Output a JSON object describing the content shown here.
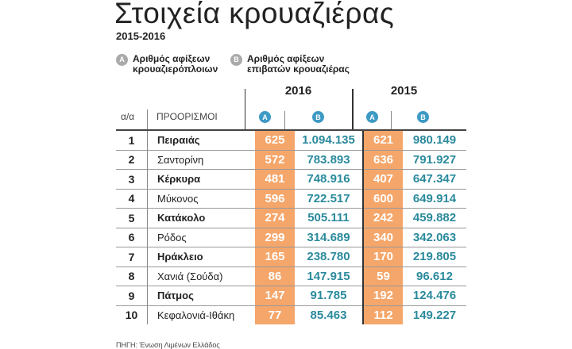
{
  "title": "Στοιχεία κρουαζιέρας",
  "subtitle": "2015-2016",
  "legend": [
    {
      "key": "A",
      "label1": "Αριθμός αφίξεων",
      "label2": "κρουαζιερόπλοιων"
    },
    {
      "key": "B",
      "label1": "Αριθμός αφίξεων",
      "label2": "επιβατών κρουαζιέρας"
    }
  ],
  "years": [
    "2016",
    "2015"
  ],
  "headers": {
    "index": "α/α",
    "destinations": "ΠΡΟΟΡΙΣΜΟΙ",
    "a": "A",
    "b": "B"
  },
  "rows": [
    {
      "n": "1",
      "name": "Πειραιάς",
      "a16": "625",
      "b16": "1.094.135",
      "a15": "621",
      "b15": "980.149"
    },
    {
      "n": "2",
      "name": "Σαντορίνη",
      "a16": "572",
      "b16": "783.893",
      "a15": "636",
      "b15": "791.927"
    },
    {
      "n": "3",
      "name": "Κέρκυρα",
      "a16": "481",
      "b16": "748.916",
      "a15": "407",
      "b15": "647.347"
    },
    {
      "n": "4",
      "name": "Μύκονος",
      "a16": "596",
      "b16": "722.517",
      "a15": "600",
      "b15": "649.914"
    },
    {
      "n": "5",
      "name": "Κατάκολο",
      "a16": "274",
      "b16": "505.111",
      "a15": "242",
      "b15": "459.882"
    },
    {
      "n": "6",
      "name": "Ρόδος",
      "a16": "299",
      "b16": "314.689",
      "a15": "340",
      "b15": "342.063"
    },
    {
      "n": "7",
      "name": "Ηράκλειο",
      "a16": "165",
      "b16": "238.780",
      "a15": "170",
      "b15": "219.805"
    },
    {
      "n": "8",
      "name": "Χανιά (Σούδα)",
      "a16": "86",
      "b16": "147.915",
      "a15": "59",
      "b15": "96.612"
    },
    {
      "n": "9",
      "name": "Πάτμος",
      "a16": "147",
      "b16": "91.785",
      "a15": "192",
      "b15": "124.476"
    },
    {
      "n": "10",
      "name": "Κεφαλονιά-Ιθάκη",
      "a16": "77",
      "b16": "85.463",
      "a15": "112",
      "b15": "149.227"
    }
  ],
  "source": "ΠΗΓΗ: Ένωση Λιμένων Ελλάδος",
  "colors": {
    "a_fill": "#f5a66a",
    "b_text": "#2a8a9c",
    "badge": "#3d9ac4"
  }
}
